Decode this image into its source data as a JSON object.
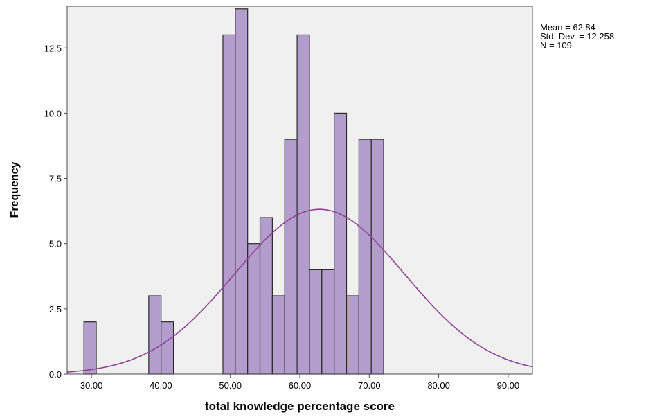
{
  "chart_data": {
    "type": "bar",
    "subtype": "histogram",
    "xlabel": "total knowledge percentage score",
    "ylabel": "Frequency",
    "xlim": [
      26.5,
      93.5
    ],
    "ylim": [
      0,
      14.1
    ],
    "x_ticks": [
      30,
      40,
      50,
      60,
      70,
      80,
      90
    ],
    "x_tick_labels": [
      "30.00",
      "40.00",
      "50.00",
      "60.00",
      "70.00",
      "80.00",
      "90.00"
    ],
    "y_ticks": [
      0,
      2.5,
      5,
      7.5,
      10,
      12.5
    ],
    "y_tick_labels": [
      "0.0",
      "2.5",
      "5.0",
      "7.5",
      "10.0",
      "12.5"
    ],
    "bin_width": 1.78,
    "bins": [
      {
        "start": 28.91,
        "count": 2
      },
      {
        "start": 34.25,
        "count": 0
      },
      {
        "start": 38.25,
        "count": 3
      },
      {
        "start": 40.03,
        "count": 2
      },
      {
        "start": 48.93,
        "count": 13
      },
      {
        "start": 50.71,
        "count": 14
      },
      {
        "start": 52.49,
        "count": 5
      },
      {
        "start": 54.27,
        "count": 6
      },
      {
        "start": 56.05,
        "count": 3
      },
      {
        "start": 57.83,
        "count": 9
      },
      {
        "start": 59.61,
        "count": 13
      },
      {
        "start": 61.39,
        "count": 4
      },
      {
        "start": 63.17,
        "count": 4
      },
      {
        "start": 64.95,
        "count": 10
      },
      {
        "start": 66.73,
        "count": 3
      },
      {
        "start": 68.51,
        "count": 9
      },
      {
        "start": 70.29,
        "count": 9
      }
    ],
    "normal_curve": {
      "mean": 62.84,
      "std_dev": 12.258,
      "n": 109
    },
    "stats": [
      "Mean = 62.84",
      "Std. Dev. = 12.258",
      "N = 109"
    ],
    "grid": false,
    "colors": {
      "bar_fill": "#b39dcc",
      "bar_stroke": "#2b2b2b",
      "plot_background": "#f0f0f0",
      "curve": "#8e3e96"
    }
  }
}
